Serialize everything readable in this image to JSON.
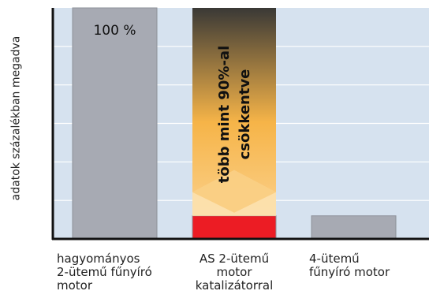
{
  "chart_data": {
    "type": "bar",
    "ylabel": "adatok százalékban megadva",
    "xlabel": "",
    "title": "",
    "ylim": [
      0,
      100
    ],
    "grid": true,
    "categories": [
      "hagyományos\n2-ütemű fűnyíró\nmotor",
      "AS 2-ütemű\nmotor\nkatalizátorral",
      "4-ütemű\nfűnyíró motor"
    ],
    "values": [
      100,
      10,
      10
    ],
    "bar_colors": [
      "#a7aab3",
      "#ec1c24",
      "#a7aab3"
    ],
    "data_labels": [
      "100 %"
    ],
    "annotation": "több mint 90%-al\ncsökkentve",
    "annotation_gradient": [
      "#3a3936",
      "#f6b448",
      "#fbd08a"
    ],
    "background_color": "#d6e2ef"
  }
}
